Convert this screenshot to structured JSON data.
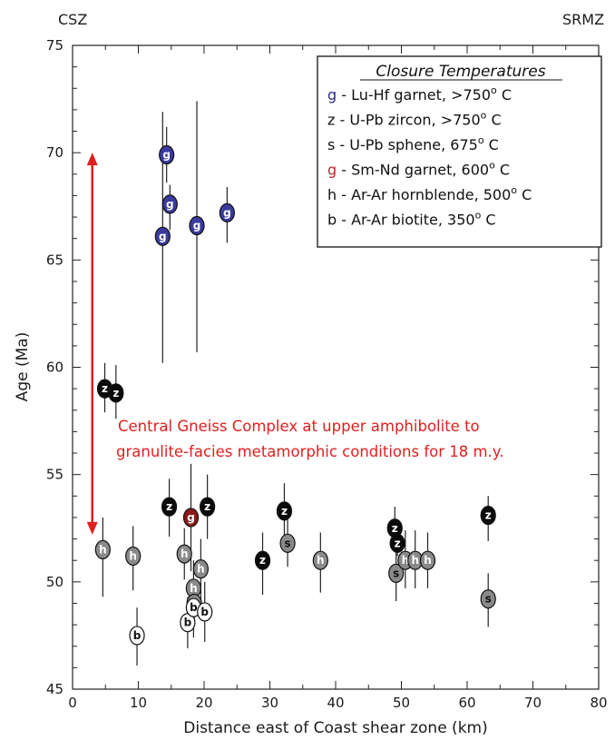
{
  "chart_data": {
    "type": "scatter",
    "xlabel": "Distance east of Coast shear zone (km)",
    "ylabel": "Age (Ma)",
    "xlim": [
      0,
      80
    ],
    "ylim": [
      45,
      75
    ],
    "xticks": [
      "0",
      "10",
      "20",
      "30",
      "40",
      "50",
      "60",
      "70",
      "80"
    ],
    "yticks": [
      "45",
      "50",
      "55",
      "60",
      "65",
      "70",
      "75"
    ],
    "grid": false,
    "corner_left": "CSZ",
    "corner_right": "SRMZ",
    "legend": {
      "title": "Closure Temperatures",
      "position": "top-right",
      "entries": [
        {
          "symbol": "g",
          "color": "#2a2a88",
          "text": " - Lu-Hf garnet, >750",
          "suffix": " C"
        },
        {
          "symbol": "z",
          "color": "#111111",
          "text": " - U-Pb zircon, >750",
          "suffix": " C"
        },
        {
          "symbol": "s",
          "color": "#111111",
          "text": " - U-Pb sphene, 675",
          "suffix": " C"
        },
        {
          "symbol": "g",
          "color": "#c0282a",
          "text": " - Sm-Nd garnet, 600",
          "suffix": " C"
        },
        {
          "symbol": "h",
          "color": "#111111",
          "text": " - Ar-Ar hornblende, 500",
          "suffix": " C"
        },
        {
          "symbol": "b",
          "color": "#111111",
          "text": " - Ar-Ar biotite, 350",
          "suffix": " C"
        }
      ],
      "degree": "o"
    },
    "annotation": {
      "line1": "Central Gneiss Complex at upper amphibolite to",
      "line2": "granulite-facies metamorphic conditions for 18 m.y.",
      "color": "#e02020",
      "arrow_x": 3,
      "arrow_y": [
        70,
        52.2
      ]
    },
    "series": [
      {
        "name": "Lu-Hf garnet",
        "symbol": "g",
        "fill": "#3a3aa0",
        "text_color": "#ffffff",
        "points": [
          {
            "x": 13.7,
            "y": 66.1,
            "err": [
              60.2,
              71.9
            ]
          },
          {
            "x": 14.3,
            "y": 69.9,
            "err": [
              68.6,
              71.2
            ]
          },
          {
            "x": 14.8,
            "y": 67.6,
            "err": [
              66.4,
              68.5
            ]
          },
          {
            "x": 18.9,
            "y": 66.6,
            "err": [
              60.7,
              72.4
            ]
          },
          {
            "x": 23.5,
            "y": 67.2,
            "err": [
              65.8,
              68.4
            ]
          }
        ]
      },
      {
        "name": "U-Pb zircon",
        "symbol": "z",
        "fill": "#0a0a0a",
        "text_color": "#ffffff",
        "points": [
          {
            "x": 4.9,
            "y": 59.0,
            "err": [
              57.9,
              60.2
            ]
          },
          {
            "x": 6.6,
            "y": 58.8,
            "err": [
              57.6,
              60.1
            ]
          },
          {
            "x": 14.7,
            "y": 53.5,
            "err": [
              52.1,
              54.8
            ]
          },
          {
            "x": 20.5,
            "y": 53.5,
            "err": [
              52.0,
              55.0
            ]
          },
          {
            "x": 28.9,
            "y": 51.0,
            "err": [
              49.4,
              52.3
            ]
          },
          {
            "x": 32.2,
            "y": 53.3,
            "err": [
              51.9,
              54.6
            ]
          },
          {
            "x": 49.0,
            "y": 52.5,
            "err": [
              51.7,
              53.5
            ]
          },
          {
            "x": 49.4,
            "y": 51.8,
            "err": [
              51.2,
              52.8
            ]
          },
          {
            "x": 63.2,
            "y": 53.1,
            "err": [
              51.9,
              54.0
            ]
          }
        ]
      },
      {
        "name": "U-Pb sphene",
        "symbol": "s",
        "fill": "#8a8a8a",
        "text_color": "#111111",
        "points": [
          {
            "x": 32.7,
            "y": 51.8,
            "err": [
              50.7,
              52.9
            ]
          },
          {
            "x": 49.2,
            "y": 50.4,
            "err": [
              49.1,
              51.8
            ]
          },
          {
            "x": 63.2,
            "y": 49.2,
            "err": [
              47.9,
              50.4
            ]
          }
        ]
      },
      {
        "name": "Sm-Nd garnet",
        "symbol": "g",
        "fill": "#8b1a1a",
        "text_color": "#ffffff",
        "points": [
          {
            "x": 18.0,
            "y": 53.0,
            "err": [
              50.5,
              55.5
            ]
          }
        ]
      },
      {
        "name": "Ar-Ar hornblende",
        "symbol": "h",
        "fill": "#8a8a8a",
        "text_color": "#ffffff",
        "points": [
          {
            "x": 4.6,
            "y": 51.5,
            "err": [
              49.3,
              53.0
            ]
          },
          {
            "x": 9.2,
            "y": 51.2,
            "err": [
              49.6,
              52.6
            ]
          },
          {
            "x": 17.0,
            "y": 51.3,
            "err": [
              50.1,
              52.5
            ]
          },
          {
            "x": 18.4,
            "y": 49.7,
            "err": [
              48.5,
              51.0
            ]
          },
          {
            "x": 19.5,
            "y": 50.6,
            "err": [
              49.1,
              52.0
            ]
          },
          {
            "x": 37.7,
            "y": 51.0,
            "err": [
              49.5,
              52.3
            ]
          },
          {
            "x": 50.6,
            "y": 51.0,
            "err": [
              49.7,
              52.4
            ]
          },
          {
            "x": 52.1,
            "y": 51.0,
            "err": [
              49.7,
              52.4
            ]
          },
          {
            "x": 54.0,
            "y": 51.0,
            "err": [
              49.7,
              52.3
            ]
          },
          {
            "x": 18.5,
            "y": 49.0,
            "err": [
              48.3,
              50.0
            ]
          }
        ]
      },
      {
        "name": "Ar-Ar biotite",
        "symbol": "b",
        "fill": "#ffffff",
        "text_color": "#111111",
        "points": [
          {
            "x": 9.8,
            "y": 47.5,
            "err": [
              46.1,
              48.8
            ]
          },
          {
            "x": 17.5,
            "y": 48.1,
            "err": [
              46.9,
              49.3
            ]
          },
          {
            "x": 18.4,
            "y": 48.8,
            "err": [
              47.4,
              50.2
            ]
          },
          {
            "x": 20.1,
            "y": 48.6,
            "err": [
              47.2,
              50.0
            ]
          }
        ]
      }
    ]
  }
}
